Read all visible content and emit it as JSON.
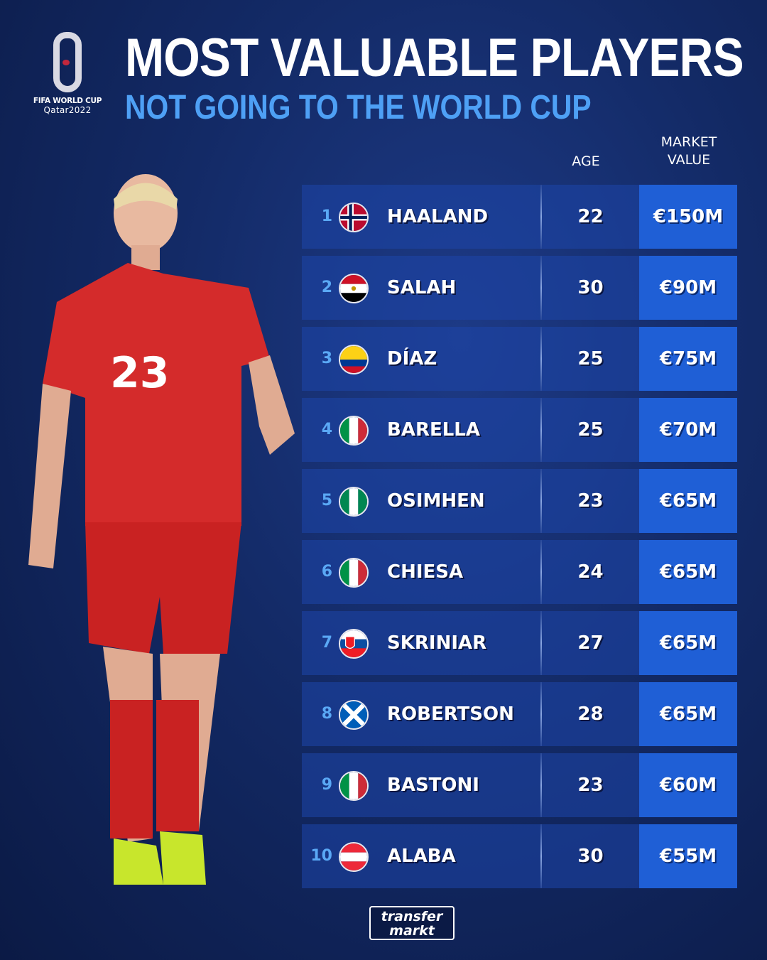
{
  "logo": {
    "line1": "FIFA WORLD CUP",
    "line2": "Qatar2022"
  },
  "title": "MOST VALUABLE PLAYERS",
  "subtitle": "NOT GOING TO THE WORLD CUP",
  "headers": {
    "age": "AGE",
    "market_value_1": "MARKET",
    "market_value_2": "VALUE"
  },
  "rows": [
    {
      "rank": "1",
      "flag": "flag-norway",
      "name": "HAALAND",
      "age": "22",
      "value": "€150M"
    },
    {
      "rank": "2",
      "flag": "flag-egypt",
      "name": "SALAH",
      "age": "30",
      "value": "€90M"
    },
    {
      "rank": "3",
      "flag": "flag-colombia",
      "name": "DÍAZ",
      "age": "25",
      "value": "€75M"
    },
    {
      "rank": "4",
      "flag": "flag-italy",
      "name": "BARELLA",
      "age": "25",
      "value": "€70M"
    },
    {
      "rank": "5",
      "flag": "flag-nigeria",
      "name": "OSIMHEN",
      "age": "23",
      "value": "€65M"
    },
    {
      "rank": "6",
      "flag": "flag-italy",
      "name": "CHIESA",
      "age": "24",
      "value": "€65M"
    },
    {
      "rank": "7",
      "flag": "flag-slovakia",
      "name": "SKRINIAR",
      "age": "27",
      "value": "€65M"
    },
    {
      "rank": "8",
      "flag": "flag-scotland",
      "name": "ROBERTSON",
      "age": "28",
      "value": "€65M"
    },
    {
      "rank": "9",
      "flag": "flag-italy",
      "name": "BASTONI",
      "age": "23",
      "value": "€60M"
    },
    {
      "rank": "10",
      "flag": "flag-austria",
      "name": "ALABA",
      "age": "30",
      "value": "€55M"
    }
  ],
  "player_shirt_number": "23",
  "brand": {
    "line1": "transfer",
    "line2": "markt"
  },
  "colors": {
    "accent_blue": "#4ea0f5",
    "value_cell": "#1f5fd6",
    "shirt_red": "#d42b2b"
  }
}
